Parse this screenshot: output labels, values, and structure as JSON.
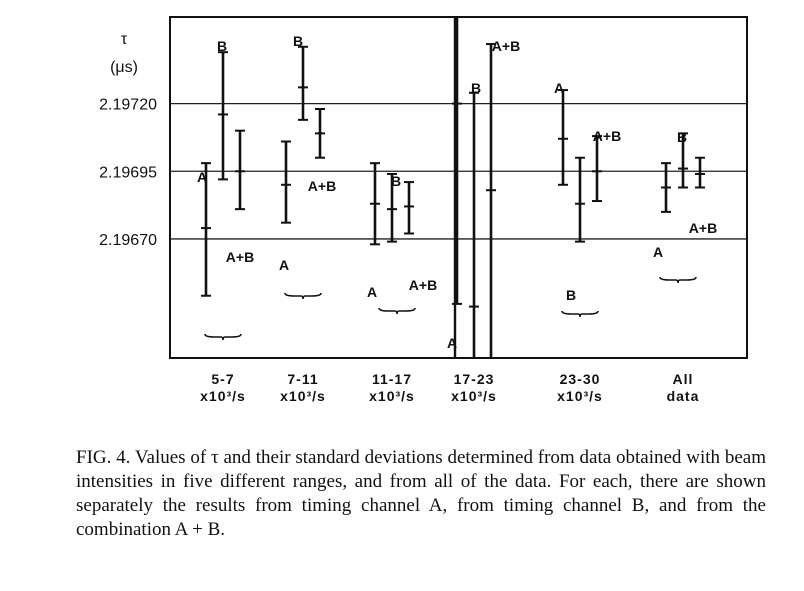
{
  "chart_data": {
    "type": "errorbar",
    "y_axis_label": [
      "τ",
      "(μs)"
    ],
    "ylim": [
      2.19626,
      2.19752
    ],
    "y_ticks": [
      {
        "value": 2.1972,
        "label": "2.19720"
      },
      {
        "value": 2.19695,
        "label": "2.19695"
      },
      {
        "value": 2.1967,
        "label": "2.19670"
      }
    ],
    "grid": "horizontal lines at each y tick",
    "categories": [
      {
        "label": [
          "5-7",
          "x10³/s"
        ]
      },
      {
        "label": [
          "7-11",
          "x10³/s"
        ]
      },
      {
        "label": [
          "11-17",
          "x10³/s"
        ]
      },
      {
        "label": [
          "17-23",
          "x10³/s"
        ]
      },
      {
        "label": [
          "23-30",
          "x10³/s"
        ]
      },
      {
        "label": [
          "All",
          "data"
        ]
      }
    ],
    "series_labels": [
      "A",
      "B",
      "A+B"
    ],
    "points": [
      {
        "group": 0,
        "series": "A",
        "y": 2.19674,
        "low": 2.19649,
        "high": 2.19698
      },
      {
        "group": 0,
        "series": "B",
        "y": 2.19716,
        "low": 2.19692,
        "high": 2.19739
      },
      {
        "group": 0,
        "series": "A+B",
        "y": 2.19695,
        "low": 2.19681,
        "high": 2.1971
      },
      {
        "group": 1,
        "series": "A",
        "y": 2.1969,
        "low": 2.19676,
        "high": 2.19706
      },
      {
        "group": 1,
        "series": "B",
        "y": 2.19726,
        "low": 2.19714,
        "high": 2.19741
      },
      {
        "group": 1,
        "series": "A+B",
        "y": 2.19709,
        "low": 2.197,
        "high": 2.19718
      },
      {
        "group": 2,
        "series": "A",
        "y": 2.19683,
        "low": 2.19668,
        "high": 2.19698
      },
      {
        "group": 2,
        "series": "B",
        "y": 2.19681,
        "low": 2.19669,
        "high": 2.19694
      },
      {
        "group": 2,
        "series": "A+B",
        "y": 2.19682,
        "low": 2.19672,
        "high": 2.19691
      },
      {
        "group": 3,
        "series": "A",
        "y": 2.1972,
        "low": 2.19646,
        "high": 2.19752
      },
      {
        "group": 3,
        "series": "B",
        "y": 2.19645,
        "low": 2.19626,
        "high": 2.19724
      },
      {
        "group": 3,
        "series": "A+B",
        "y": 2.19688,
        "low": 2.19626,
        "high": 2.19742
      },
      {
        "group": 4,
        "series": "A",
        "y": 2.19707,
        "low": 2.1969,
        "high": 2.19725
      },
      {
        "group": 4,
        "series": "B",
        "y": 2.19683,
        "low": 2.19669,
        "high": 2.197
      },
      {
        "group": 4,
        "series": "A+B",
        "y": 2.19695,
        "low": 2.19684,
        "high": 2.19708
      },
      {
        "group": 5,
        "series": "A",
        "y": 2.19689,
        "low": 2.1968,
        "high": 2.19698
      },
      {
        "group": 5,
        "series": "B",
        "y": 2.19696,
        "low": 2.19689,
        "high": 2.19709
      },
      {
        "group": 5,
        "series": "A+B",
        "y": 2.19694,
        "low": 2.19689,
        "high": 2.197
      }
    ]
  },
  "caption": "FIG. 4.  Values of τ and their standard deviations determined from data obtained with beam intensities in five different ranges, and from all of the data.  For each, there are shown separately the results from timing channel A, from timing channel B, and from the combination A + B."
}
